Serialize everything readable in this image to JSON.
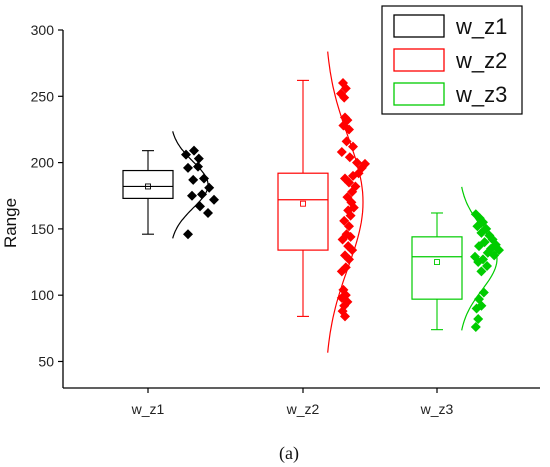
{
  "chart_data": {
    "type": "box",
    "ylabel": "Range",
    "ylim": [
      30,
      300
    ],
    "yticks": [
      50,
      100,
      150,
      200,
      250,
      300
    ],
    "categories": [
      "w_z1",
      "w_z2",
      "w_z3"
    ],
    "caption": "(a)",
    "legend": {
      "placement": "top-right",
      "entries": [
        "w_z1",
        "w_z2",
        "w_z3"
      ]
    },
    "series": [
      {
        "name": "w_z1",
        "color": "#000000",
        "box": {
          "min": 146,
          "q1": 173,
          "median": 182,
          "mean": 182,
          "q3": 194,
          "max": 209
        },
        "points": [
          {
            "x": 0.0,
            "y": 206
          },
          {
            "x": 0.2,
            "y": 209
          },
          {
            "x": 0.32,
            "y": 203
          },
          {
            "x": 0.05,
            "y": 196
          },
          {
            "x": 0.3,
            "y": 197
          },
          {
            "x": 0.45,
            "y": 188
          },
          {
            "x": 0.18,
            "y": 187
          },
          {
            "x": 0.58,
            "y": 181
          },
          {
            "x": 0.4,
            "y": 176
          },
          {
            "x": 0.15,
            "y": 175
          },
          {
            "x": 0.7,
            "y": 172
          },
          {
            "x": 0.35,
            "y": 167
          },
          {
            "x": 0.55,
            "y": 162
          },
          {
            "x": 0.05,
            "y": 146
          }
        ]
      },
      {
        "name": "w_z2",
        "color": "#ff0000",
        "box": {
          "min": 84,
          "q1": 134,
          "median": 172,
          "mean": 169,
          "q3": 192,
          "max": 262
        },
        "points": [
          {
            "x": 0.05,
            "y": 260
          },
          {
            "x": 0.12,
            "y": 256
          },
          {
            "x": 0.0,
            "y": 252
          },
          {
            "x": 0.08,
            "y": 249
          },
          {
            "x": 0.1,
            "y": 234
          },
          {
            "x": 0.16,
            "y": 232
          },
          {
            "x": 0.06,
            "y": 228
          },
          {
            "x": 0.2,
            "y": 225
          },
          {
            "x": 0.14,
            "y": 216
          },
          {
            "x": 0.3,
            "y": 212
          },
          {
            "x": 0.02,
            "y": 208
          },
          {
            "x": 0.22,
            "y": 204
          },
          {
            "x": 0.4,
            "y": 200
          },
          {
            "x": 0.6,
            "y": 199
          },
          {
            "x": 0.52,
            "y": 196
          },
          {
            "x": 0.44,
            "y": 192
          },
          {
            "x": 0.3,
            "y": 190
          },
          {
            "x": 0.1,
            "y": 188
          },
          {
            "x": 0.2,
            "y": 185
          },
          {
            "x": 0.36,
            "y": 182
          },
          {
            "x": 0.28,
            "y": 178
          },
          {
            "x": 0.16,
            "y": 174
          },
          {
            "x": 0.26,
            "y": 170
          },
          {
            "x": 0.32,
            "y": 166
          },
          {
            "x": 0.18,
            "y": 164
          },
          {
            "x": 0.24,
            "y": 160
          },
          {
            "x": 0.08,
            "y": 156
          },
          {
            "x": 0.2,
            "y": 152
          },
          {
            "x": 0.14,
            "y": 146
          },
          {
            "x": 0.24,
            "y": 144
          },
          {
            "x": 0.04,
            "y": 142
          },
          {
            "x": 0.18,
            "y": 137
          },
          {
            "x": 0.28,
            "y": 134
          },
          {
            "x": 0.1,
            "y": 130
          },
          {
            "x": 0.2,
            "y": 127
          },
          {
            "x": 0.12,
            "y": 121
          },
          {
            "x": 0.02,
            "y": 118
          },
          {
            "x": 0.06,
            "y": 104
          },
          {
            "x": 0.12,
            "y": 100
          },
          {
            "x": 0.02,
            "y": 98
          },
          {
            "x": 0.16,
            "y": 95
          },
          {
            "x": 0.08,
            "y": 92
          },
          {
            "x": 0.04,
            "y": 88
          },
          {
            "x": 0.1,
            "y": 84
          }
        ]
      },
      {
        "name": "w_z3",
        "color": "#00cc00",
        "box": {
          "min": 74,
          "q1": 97,
          "median": 129,
          "mean": 125,
          "q3": 144,
          "max": 162
        },
        "points": [
          {
            "x": 0.02,
            "y": 161
          },
          {
            "x": 0.12,
            "y": 158
          },
          {
            "x": 0.2,
            "y": 155
          },
          {
            "x": 0.06,
            "y": 152
          },
          {
            "x": 0.28,
            "y": 150
          },
          {
            "x": 0.16,
            "y": 147
          },
          {
            "x": 0.36,
            "y": 145
          },
          {
            "x": 0.44,
            "y": 142
          },
          {
            "x": 0.24,
            "y": 140
          },
          {
            "x": 0.52,
            "y": 138
          },
          {
            "x": 0.1,
            "y": 137
          },
          {
            "x": 0.4,
            "y": 135
          },
          {
            "x": 0.6,
            "y": 134
          },
          {
            "x": 0.32,
            "y": 132
          },
          {
            "x": 0.48,
            "y": 130
          },
          {
            "x": 0.0,
            "y": 129
          },
          {
            "x": 0.2,
            "y": 127
          },
          {
            "x": 0.08,
            "y": 125
          },
          {
            "x": 0.3,
            "y": 122
          },
          {
            "x": 0.16,
            "y": 118
          },
          {
            "x": 0.22,
            "y": 102
          },
          {
            "x": 0.1,
            "y": 97
          },
          {
            "x": 0.16,
            "y": 92
          },
          {
            "x": 0.04,
            "y": 90
          },
          {
            "x": 0.08,
            "y": 82
          },
          {
            "x": 0.02,
            "y": 76
          }
        ]
      }
    ]
  }
}
